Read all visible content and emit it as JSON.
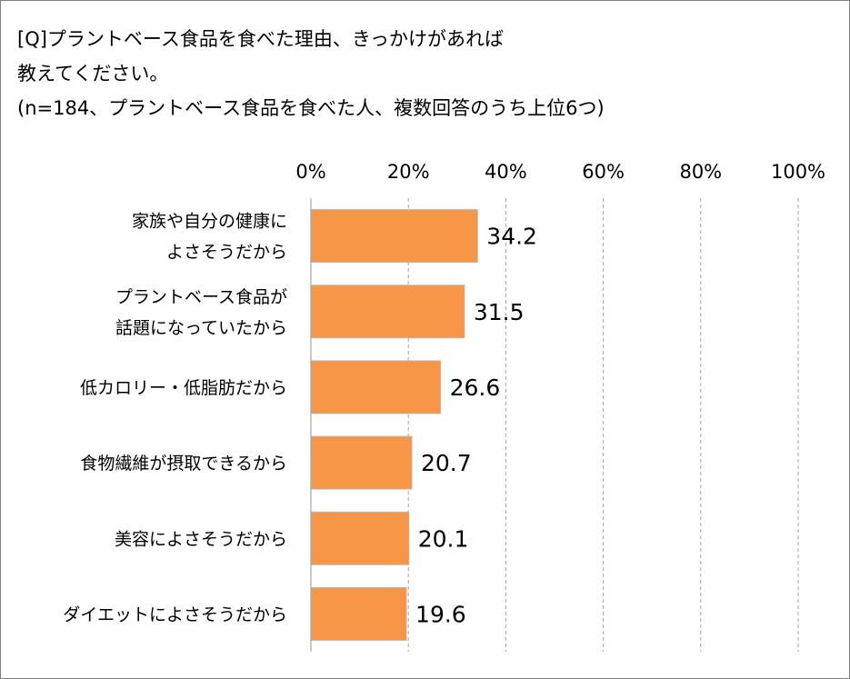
{
  "title_lines": [
    "[Q]プラントベース食品を食べた理由、きっかけがあれば",
    "教えてください。",
    "(n=184、プラントベース食品を食べた人、複数回答のうち上位6つ)"
  ],
  "chart_data": {
    "type": "bar",
    "orientation": "horizontal",
    "title": "[Q]プラントベース食品を食べた理由、きっかけがあれば教えてください。(n=184、プラントベース食品を食べた人、複数回答のうち上位6つ)",
    "categories": [
      [
        "家族や自分の健康に",
        "よさそうだから"
      ],
      [
        "プラントベース食品が",
        "話題になっていたから"
      ],
      [
        "低カロリー・低脂肪だから"
      ],
      [
        "食物繊維が摂取できるから"
      ],
      [
        "美容によさそうだから"
      ],
      [
        "ダイエットによさそうだから"
      ]
    ],
    "values": [
      34.2,
      31.5,
      26.6,
      20.7,
      20.1,
      19.6
    ],
    "data_labels": [
      "34.2",
      "31.5",
      "26.6",
      "20.7",
      "20.1",
      "19.6"
    ],
    "x_ticks": [
      0,
      20,
      40,
      60,
      80,
      100
    ],
    "x_tick_labels": [
      "0%",
      "20%",
      "40%",
      "60%",
      "80%",
      "100%"
    ],
    "xlim": [
      0,
      100
    ],
    "axis_position": "top",
    "grid": "vertical dashed",
    "legend": "none",
    "bar_color": "#F79646",
    "bar_edge_color": "#B8B8B8",
    "grid_color": "#A6A6A6"
  }
}
